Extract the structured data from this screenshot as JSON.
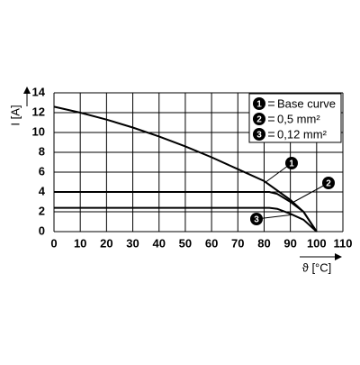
{
  "chart_data": {
    "type": "line",
    "ylabel": "I [A]",
    "xlabel": "ϑ [°C]",
    "xlim": [
      0,
      110
    ],
    "xticks": [
      0,
      10,
      20,
      30,
      40,
      50,
      60,
      70,
      80,
      90,
      100,
      110
    ],
    "ylim": [
      0,
      14
    ],
    "yticks": [
      0,
      2,
      4,
      6,
      8,
      10,
      12,
      14
    ],
    "grid": true,
    "series": [
      {
        "name": "Base curve",
        "marker": "1",
        "color": "#000000",
        "x": [
          0,
          10,
          20,
          30,
          40,
          50,
          60,
          70,
          80,
          90,
          95,
          100
        ],
        "values": [
          12.6,
          12.0,
          11.3,
          10.5,
          9.6,
          8.6,
          7.5,
          6.3,
          5.1,
          3.2,
          2.0,
          0
        ]
      },
      {
        "name": "0,5 mm²",
        "marker": "2",
        "color": "#000000",
        "x": [
          0,
          82,
          85,
          90,
          95,
          100
        ],
        "values": [
          4.0,
          4.0,
          3.8,
          3.0,
          2.0,
          0
        ]
      },
      {
        "name": "0,12 mm²",
        "marker": "3",
        "color": "#000000",
        "x": [
          0,
          82,
          85,
          90,
          95,
          100
        ],
        "values": [
          2.4,
          2.4,
          2.3,
          1.8,
          1.2,
          0
        ]
      }
    ]
  }
}
